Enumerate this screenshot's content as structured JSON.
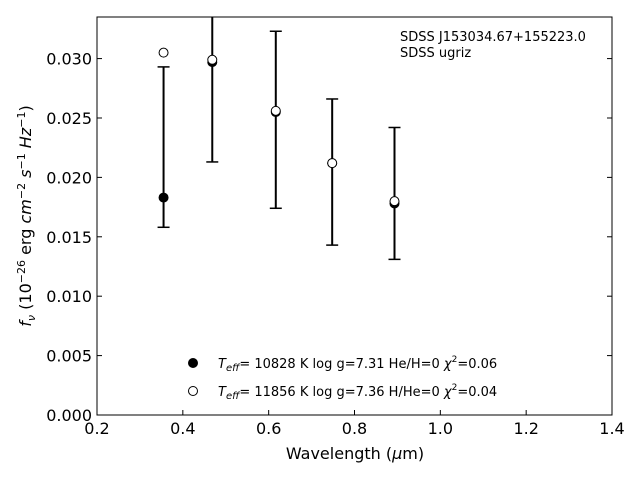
{
  "chart_data": {
    "type": "scatter",
    "xlabel_parts": {
      "pre": "Wavelength (",
      "mu": "μ",
      "post": "m)"
    },
    "ylabel_parts": {
      "f": "f",
      "nu": "ν",
      "pre": " (10",
      "exp1": "−26",
      "mid": " erg ",
      "cm": "cm",
      "exp2": "−2",
      "s": " s",
      "exp3": "−1",
      "hz": " Hz",
      "exp4": "−1",
      "close": ")"
    },
    "xlim": [
      0.2,
      1.4
    ],
    "ylim": [
      0.0,
      0.0335
    ],
    "xticks": [
      "0.2",
      "0.4",
      "0.6",
      "0.8",
      "1.0",
      "1.2",
      "1.4"
    ],
    "yticks": [
      "0.000",
      "0.005",
      "0.010",
      "0.015",
      "0.020",
      "0.025",
      "0.030"
    ],
    "annotations": [
      "SDSS J153034.67+155223.0",
      "SDSS ugriz"
    ],
    "series": [
      {
        "marker": "filled-circle",
        "legend": {
          "teff_T": "T",
          "teff_sub": "eff",
          "rest": "= 10828 K  log g=7.31  He/H=0  ",
          "chi": "χ",
          "chi_exp": "2",
          "chi_val": "=0.06"
        },
        "x": [
          0.3551,
          0.4686,
          0.6166,
          0.748,
          0.8932
        ],
        "y": [
          0.0183,
          0.0297,
          0.0255,
          0.0212,
          0.0178
        ],
        "yerr_low": [
          0.0158,
          0.0213,
          0.0174,
          0.0143,
          0.0131
        ],
        "yerr_high": [
          0.0293,
          0.0337,
          0.0323,
          0.0266,
          0.0242
        ]
      },
      {
        "marker": "open-circle",
        "legend": {
          "teff_T": "T",
          "teff_sub": "eff",
          "rest": "= 11856 K  log g=7.36  H/He=0  ",
          "chi": "χ",
          "chi_exp": "2",
          "chi_val": "=0.04"
        },
        "x": [
          0.3551,
          0.4686,
          0.6166,
          0.748,
          0.8932
        ],
        "y": [
          0.0305,
          0.0299,
          0.0256,
          0.0212,
          0.018
        ]
      }
    ]
  }
}
